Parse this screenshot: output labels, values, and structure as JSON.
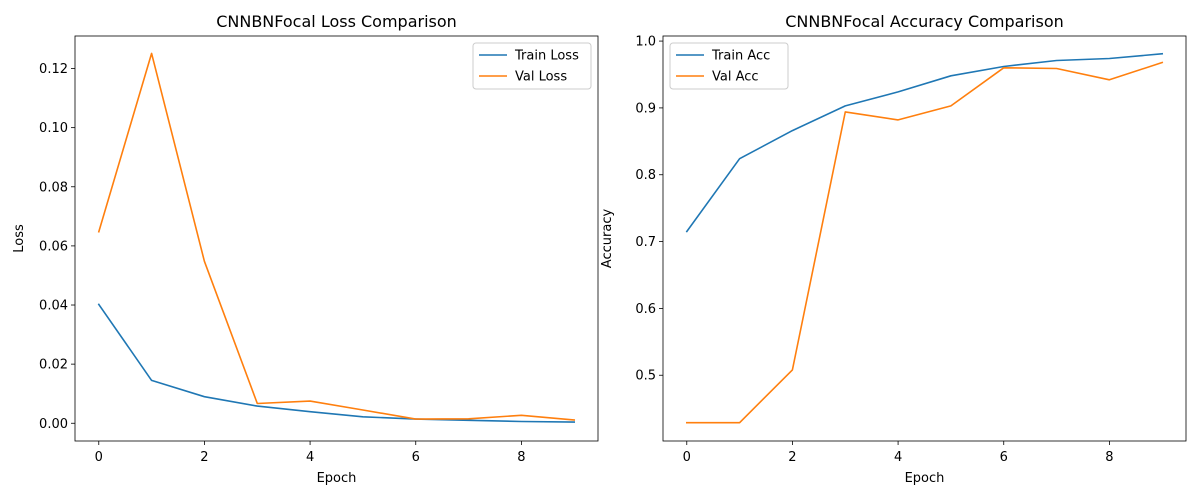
{
  "chart_data": [
    {
      "type": "line",
      "title": "CNNBNFocal Loss Comparison",
      "xlabel": "Epoch",
      "ylabel": "Loss",
      "x": [
        0,
        1,
        2,
        3,
        4,
        5,
        6,
        7,
        8,
        9
      ],
      "xlim": [
        -0.45,
        9.45
      ],
      "ylim": [
        -0.006,
        0.131
      ],
      "xticks": [
        0,
        2,
        4,
        6,
        8
      ],
      "yticks": [
        0.0,
        0.02,
        0.04,
        0.06,
        0.08,
        0.1,
        0.12
      ],
      "ytick_labels": [
        "0.00",
        "0.02",
        "0.04",
        "0.06",
        "0.08",
        "0.10",
        "0.12"
      ],
      "grid": false,
      "legend": "top-right",
      "series": [
        {
          "name": "Train Loss",
          "color": "#1f77b4",
          "values": [
            0.0402,
            0.0145,
            0.009,
            0.0058,
            0.0039,
            0.0022,
            0.0014,
            0.001,
            0.0006,
            0.0004
          ]
        },
        {
          "name": "Val Loss",
          "color": "#ff7f0e",
          "values": [
            0.0648,
            0.1251,
            0.0548,
            0.0067,
            0.0075,
            0.0045,
            0.0014,
            0.0015,
            0.0027,
            0.0011
          ]
        }
      ]
    },
    {
      "type": "line",
      "title": "CNNBNFocal Accuracy Comparison",
      "xlabel": "Epoch",
      "ylabel": "Accuracy",
      "x": [
        0,
        1,
        2,
        3,
        4,
        5,
        6,
        7,
        8,
        9
      ],
      "xlim": [
        -0.45,
        9.45
      ],
      "ylim": [
        0.4016,
        1.0076
      ],
      "xticks": [
        0,
        2,
        4,
        6,
        8
      ],
      "yticks": [
        0.5,
        0.6,
        0.7,
        0.8,
        0.9,
        1.0
      ],
      "ytick_labels": [
        "0.5",
        "0.6",
        "0.7",
        "0.8",
        "0.9",
        "1.0"
      ],
      "grid": false,
      "legend": "top-left",
      "series": [
        {
          "name": "Train Acc",
          "color": "#1f77b4",
          "values": [
            0.715,
            0.824,
            0.866,
            0.903,
            0.924,
            0.948,
            0.962,
            0.971,
            0.974,
            0.981
          ]
        },
        {
          "name": "Val Acc",
          "color": "#ff7f0e",
          "values": [
            0.429,
            0.429,
            0.508,
            0.894,
            0.882,
            0.903,
            0.96,
            0.959,
            0.942,
            0.968
          ]
        }
      ]
    }
  ]
}
